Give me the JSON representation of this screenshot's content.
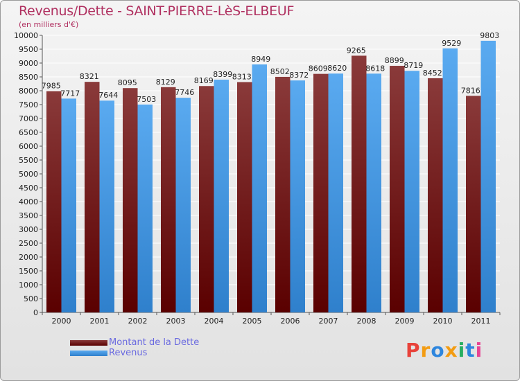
{
  "title": "Revenus/Dette - SAINT-PIERRE-LèS-ELBEUF",
  "subtitle": "(en milliers d'€)",
  "legend": {
    "debt_label": "Montant de la Dette",
    "revenue_label": "Revenus"
  },
  "logo": {
    "text": "Proxiti",
    "colors": [
      "#e8423a",
      "#f39c12",
      "#2e86de",
      "#f39c12",
      "#27ae60",
      "#2e86de",
      "#e84393"
    ]
  },
  "colors": {
    "debt_top": "#8a3a3a",
    "debt_bottom": "#5a0000",
    "revenue_top": "#5aaaf0",
    "revenue_bottom": "#2f80cc",
    "title": "#b03060",
    "legend_text": "#6a6ae0"
  },
  "chart_data": {
    "type": "bar",
    "categories": [
      "2000",
      "2001",
      "2002",
      "2003",
      "2004",
      "2005",
      "2006",
      "2007",
      "2008",
      "2009",
      "2010",
      "2011"
    ],
    "series": [
      {
        "name": "Montant de la Dette",
        "values": [
          7985,
          8321,
          8095,
          8129,
          8169,
          8313,
          8502,
          8609,
          9265,
          8899,
          8452,
          7816
        ]
      },
      {
        "name": "Revenus",
        "values": [
          7717,
          7644,
          7503,
          7746,
          8399,
          8949,
          8372,
          8620,
          8618,
          8719,
          9529,
          9803
        ]
      }
    ],
    "ylim": [
      0,
      10000
    ],
    "ytick_step": 500,
    "grid": true,
    "legend_position": "bottom-left"
  }
}
